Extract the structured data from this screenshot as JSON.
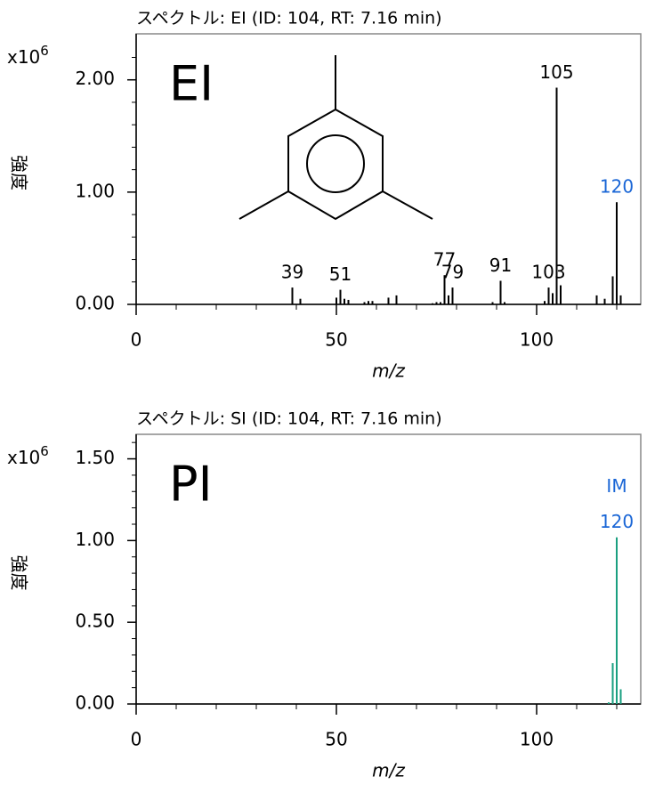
{
  "chart_data": [
    {
      "type": "bar",
      "title": "スペクトル: EI (ID: 104, RT: 7.16 min)",
      "y_scale": {
        "base": "x10",
        "exponent": "6"
      },
      "ylabel": "強度",
      "xlabel": "m/z",
      "badge": "EI",
      "badge_color": "#000000",
      "color": "#000000",
      "x": [
        39,
        41,
        50,
        51,
        52,
        53,
        57,
        58,
        59,
        63,
        65,
        74,
        75,
        76,
        77,
        78,
        79,
        89,
        91,
        92,
        102,
        103,
        104,
        105,
        106,
        115,
        117,
        119,
        120,
        121
      ],
      "values": [
        0.15,
        0.05,
        0.06,
        0.13,
        0.05,
        0.04,
        0.02,
        0.03,
        0.03,
        0.06,
        0.08,
        0.01,
        0.02,
        0.02,
        0.26,
        0.08,
        0.15,
        0.02,
        0.21,
        0.02,
        0.03,
        0.15,
        0.1,
        1.93,
        0.17,
        0.08,
        0.05,
        0.25,
        0.91,
        0.08
      ],
      "xlim": [
        0,
        126
      ],
      "xticks": [
        0,
        50,
        100
      ],
      "xminorticks": [
        10,
        20,
        30,
        40,
        60,
        70,
        80,
        90,
        110,
        120
      ],
      "ylim": [
        0,
        2.41
      ],
      "yticks": [
        {
          "value": 0,
          "label": "0.00"
        },
        {
          "value": 1,
          "label": "1.00"
        },
        {
          "value": 2,
          "label": "2.00"
        }
      ],
      "yminorticks": [
        0.2,
        0.4,
        0.6,
        0.8,
        1.2,
        1.4,
        1.6,
        1.8,
        2.2
      ],
      "peak_labels": [
        {
          "text": 39,
          "color": "#000000"
        },
        {
          "text": 51,
          "color": "#000000"
        },
        {
          "text": 77,
          "color": "#000000"
        },
        {
          "text": 79,
          "color": "#000000"
        },
        {
          "text": 91,
          "color": "#000000"
        },
        {
          "text": 103,
          "color": "#000000"
        },
        {
          "text": 105,
          "color": "#000000"
        },
        {
          "text": 120,
          "color": "#1a66d6"
        }
      ]
    },
    {
      "type": "bar",
      "title": "スペクトル: SI (ID: 104, RT: 7.16 min)",
      "y_scale": {
        "base": "x10",
        "exponent": "6"
      },
      "ylabel": "強度",
      "xlabel": "m/z",
      "badge": "PI",
      "badge_color": "#1aa84f",
      "color": "#1a9f80",
      "x": [
        118,
        119,
        120,
        121
      ],
      "values": [
        0.01,
        0.25,
        1.02,
        0.09
      ],
      "xlim": [
        0,
        126
      ],
      "xticks": [
        0,
        50,
        100
      ],
      "xminorticks": [
        10,
        20,
        30,
        40,
        60,
        70,
        80,
        90,
        110,
        120
      ],
      "ylim": [
        0,
        1.65
      ],
      "yticks": [
        {
          "value": 0,
          "label": "0.00"
        },
        {
          "value": 0.5,
          "label": "0.50"
        },
        {
          "value": 1,
          "label": "1.00"
        },
        {
          "value": 1.5,
          "label": "1.50"
        }
      ],
      "yminorticks": [
        0.1,
        0.2,
        0.3,
        0.4,
        0.6,
        0.7,
        0.8,
        0.9,
        1.1,
        1.2,
        1.3,
        1.4,
        1.6
      ],
      "peak_labels": [
        {
          "text": 120,
          "tag": "IM",
          "color": "#1a66d6"
        }
      ]
    }
  ]
}
